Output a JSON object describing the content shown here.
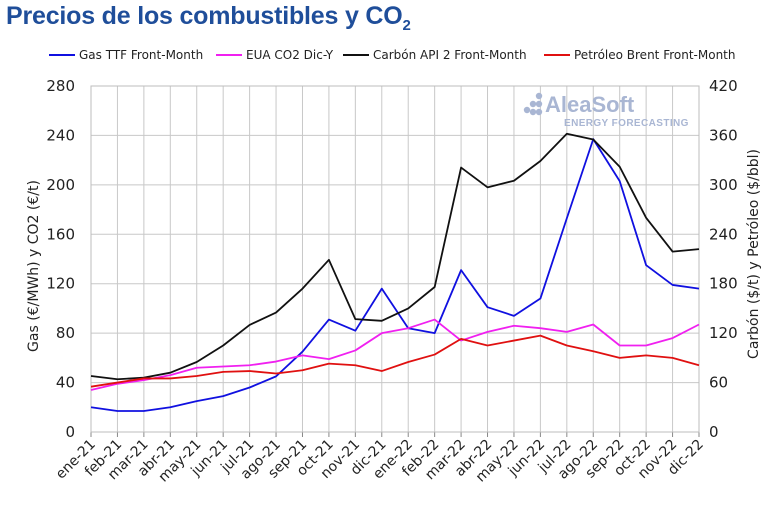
{
  "title": {
    "main": "Precios de los combustibles y CO",
    "sub": "2"
  },
  "watermark": {
    "brand": "AleaSoft",
    "tagline": "ENERGY FORECASTING"
  },
  "chart_data": {
    "type": "line",
    "categories": [
      "ene-21",
      "feb-21",
      "mar-21",
      "abr-21",
      "may-21",
      "jun-21",
      "jul-21",
      "ago-21",
      "sep-21",
      "oct-21",
      "nov-21",
      "dic-21",
      "ene-22",
      "feb-22",
      "mar-22",
      "abr-22",
      "may-22",
      "jun-22",
      "jul-22",
      "ago-22",
      "sep-22",
      "oct-22",
      "nov-22",
      "dic-22"
    ],
    "ylabel_left": "Gas (€/MWh) y CO2 (€/t)",
    "ylabel_right": "Carbón ($/t) y Petróleo ($/bbl)",
    "ylim_left": [
      0,
      280
    ],
    "yticks_left": [
      0,
      40,
      80,
      120,
      160,
      200,
      240,
      280
    ],
    "ylim_right": [
      0,
      420
    ],
    "yticks_right": [
      0,
      60,
      120,
      180,
      240,
      300,
      360,
      420
    ],
    "grid": true,
    "legend_position": "top",
    "series": [
      {
        "name": "Gas TTF Front-Month",
        "axis": "left",
        "color": "#1010e0",
        "values": [
          20,
          17,
          17,
          20,
          25,
          29,
          36,
          45,
          65,
          91,
          82,
          116,
          84,
          80,
          131,
          101,
          94,
          108,
          173,
          237,
          203,
          135,
          119,
          116
        ]
      },
      {
        "name": "EUA CO2 Dic-Y",
        "axis": "left",
        "color": "#f020f0",
        "values": [
          34,
          39,
          42,
          46,
          52,
          53,
          54,
          57,
          62,
          59,
          66,
          80,
          84,
          91,
          74,
          81,
          86,
          84,
          81,
          87,
          70,
          70,
          76,
          87
        ]
      },
      {
        "name": "Carbón API 2 Front-Month",
        "axis": "right",
        "color": "#111111",
        "values": [
          68,
          64,
          66,
          72,
          85,
          105,
          130,
          145,
          174,
          209,
          137,
          135,
          150,
          176,
          321,
          297,
          305,
          329,
          362,
          355,
          322,
          260,
          219,
          222
        ]
      },
      {
        "name": "Petróleo Brent Front-Month",
        "axis": "right",
        "color": "#e01010",
        "values": [
          55,
          60,
          65,
          65,
          68,
          73,
          74,
          71,
          75,
          83,
          81,
          74,
          85,
          94,
          113,
          105,
          111,
          117,
          105,
          98,
          90,
          93,
          90,
          81
        ]
      }
    ]
  }
}
